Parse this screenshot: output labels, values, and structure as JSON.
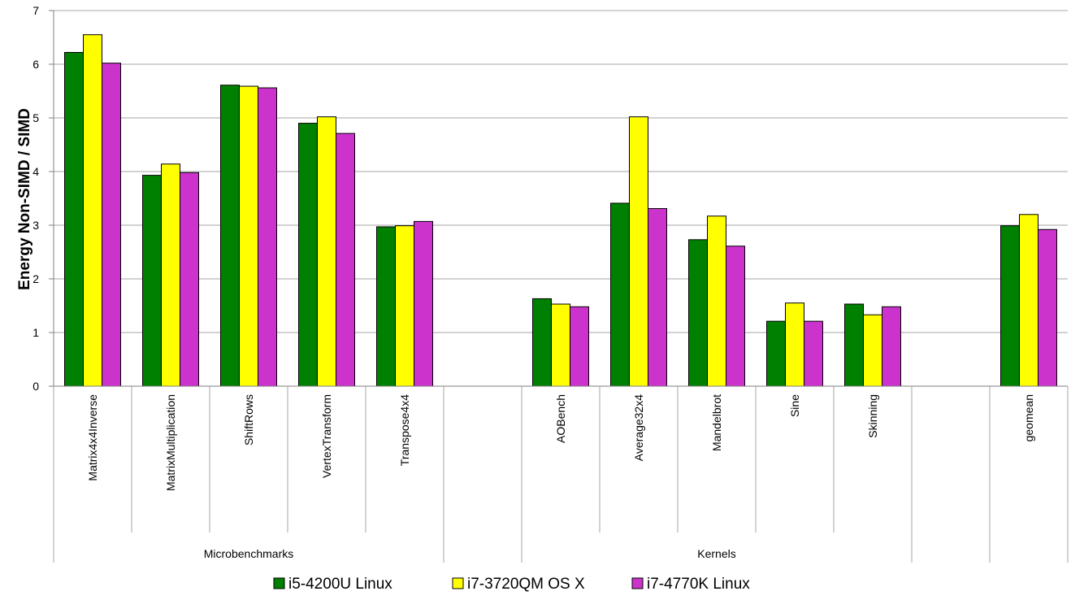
{
  "chart_data": {
    "type": "bar",
    "ylabel": "Energy Non-SIMD / SIMD",
    "ylim": [
      0,
      7
    ],
    "yticks": [
      "0",
      "1",
      "2",
      "3",
      "4",
      "5",
      "6",
      "7"
    ],
    "grid": true,
    "legend_position": "bottom",
    "categories": [
      "Matrix4x4Inverse",
      "MatrixMultiplication",
      "ShiftRows",
      "VertexTransform",
      "Transpose4x4",
      "",
      "AOBench",
      "Average32x4",
      "Mandelbrot",
      "Sine",
      "Skinning",
      "",
      "geomean"
    ],
    "groups": [
      {
        "label": "Microbenchmarks",
        "span": 5
      },
      {
        "label": "",
        "span": 1
      },
      {
        "label": "Kernels",
        "span": 5
      },
      {
        "label": "",
        "span": 1
      },
      {
        "label": "",
        "span": 1
      }
    ],
    "series": [
      {
        "name": "i5-4200U Linux",
        "color": "#008000",
        "values": [
          6.22,
          3.93,
          5.61,
          4.9,
          2.97,
          null,
          1.63,
          3.41,
          2.73,
          1.21,
          1.53,
          null,
          2.99
        ]
      },
      {
        "name": "i7-3720QM OS X",
        "color": "#ffff00",
        "values": [
          6.55,
          4.14,
          5.59,
          5.02,
          2.99,
          null,
          1.53,
          5.02,
          3.17,
          1.55,
          1.33,
          null,
          3.2
        ]
      },
      {
        "name": "i7-4770K Linux",
        "color": "#cc33cc",
        "values": [
          6.02,
          3.98,
          5.56,
          4.71,
          3.07,
          null,
          1.48,
          3.31,
          2.61,
          1.21,
          1.48,
          null,
          2.92
        ]
      }
    ]
  }
}
